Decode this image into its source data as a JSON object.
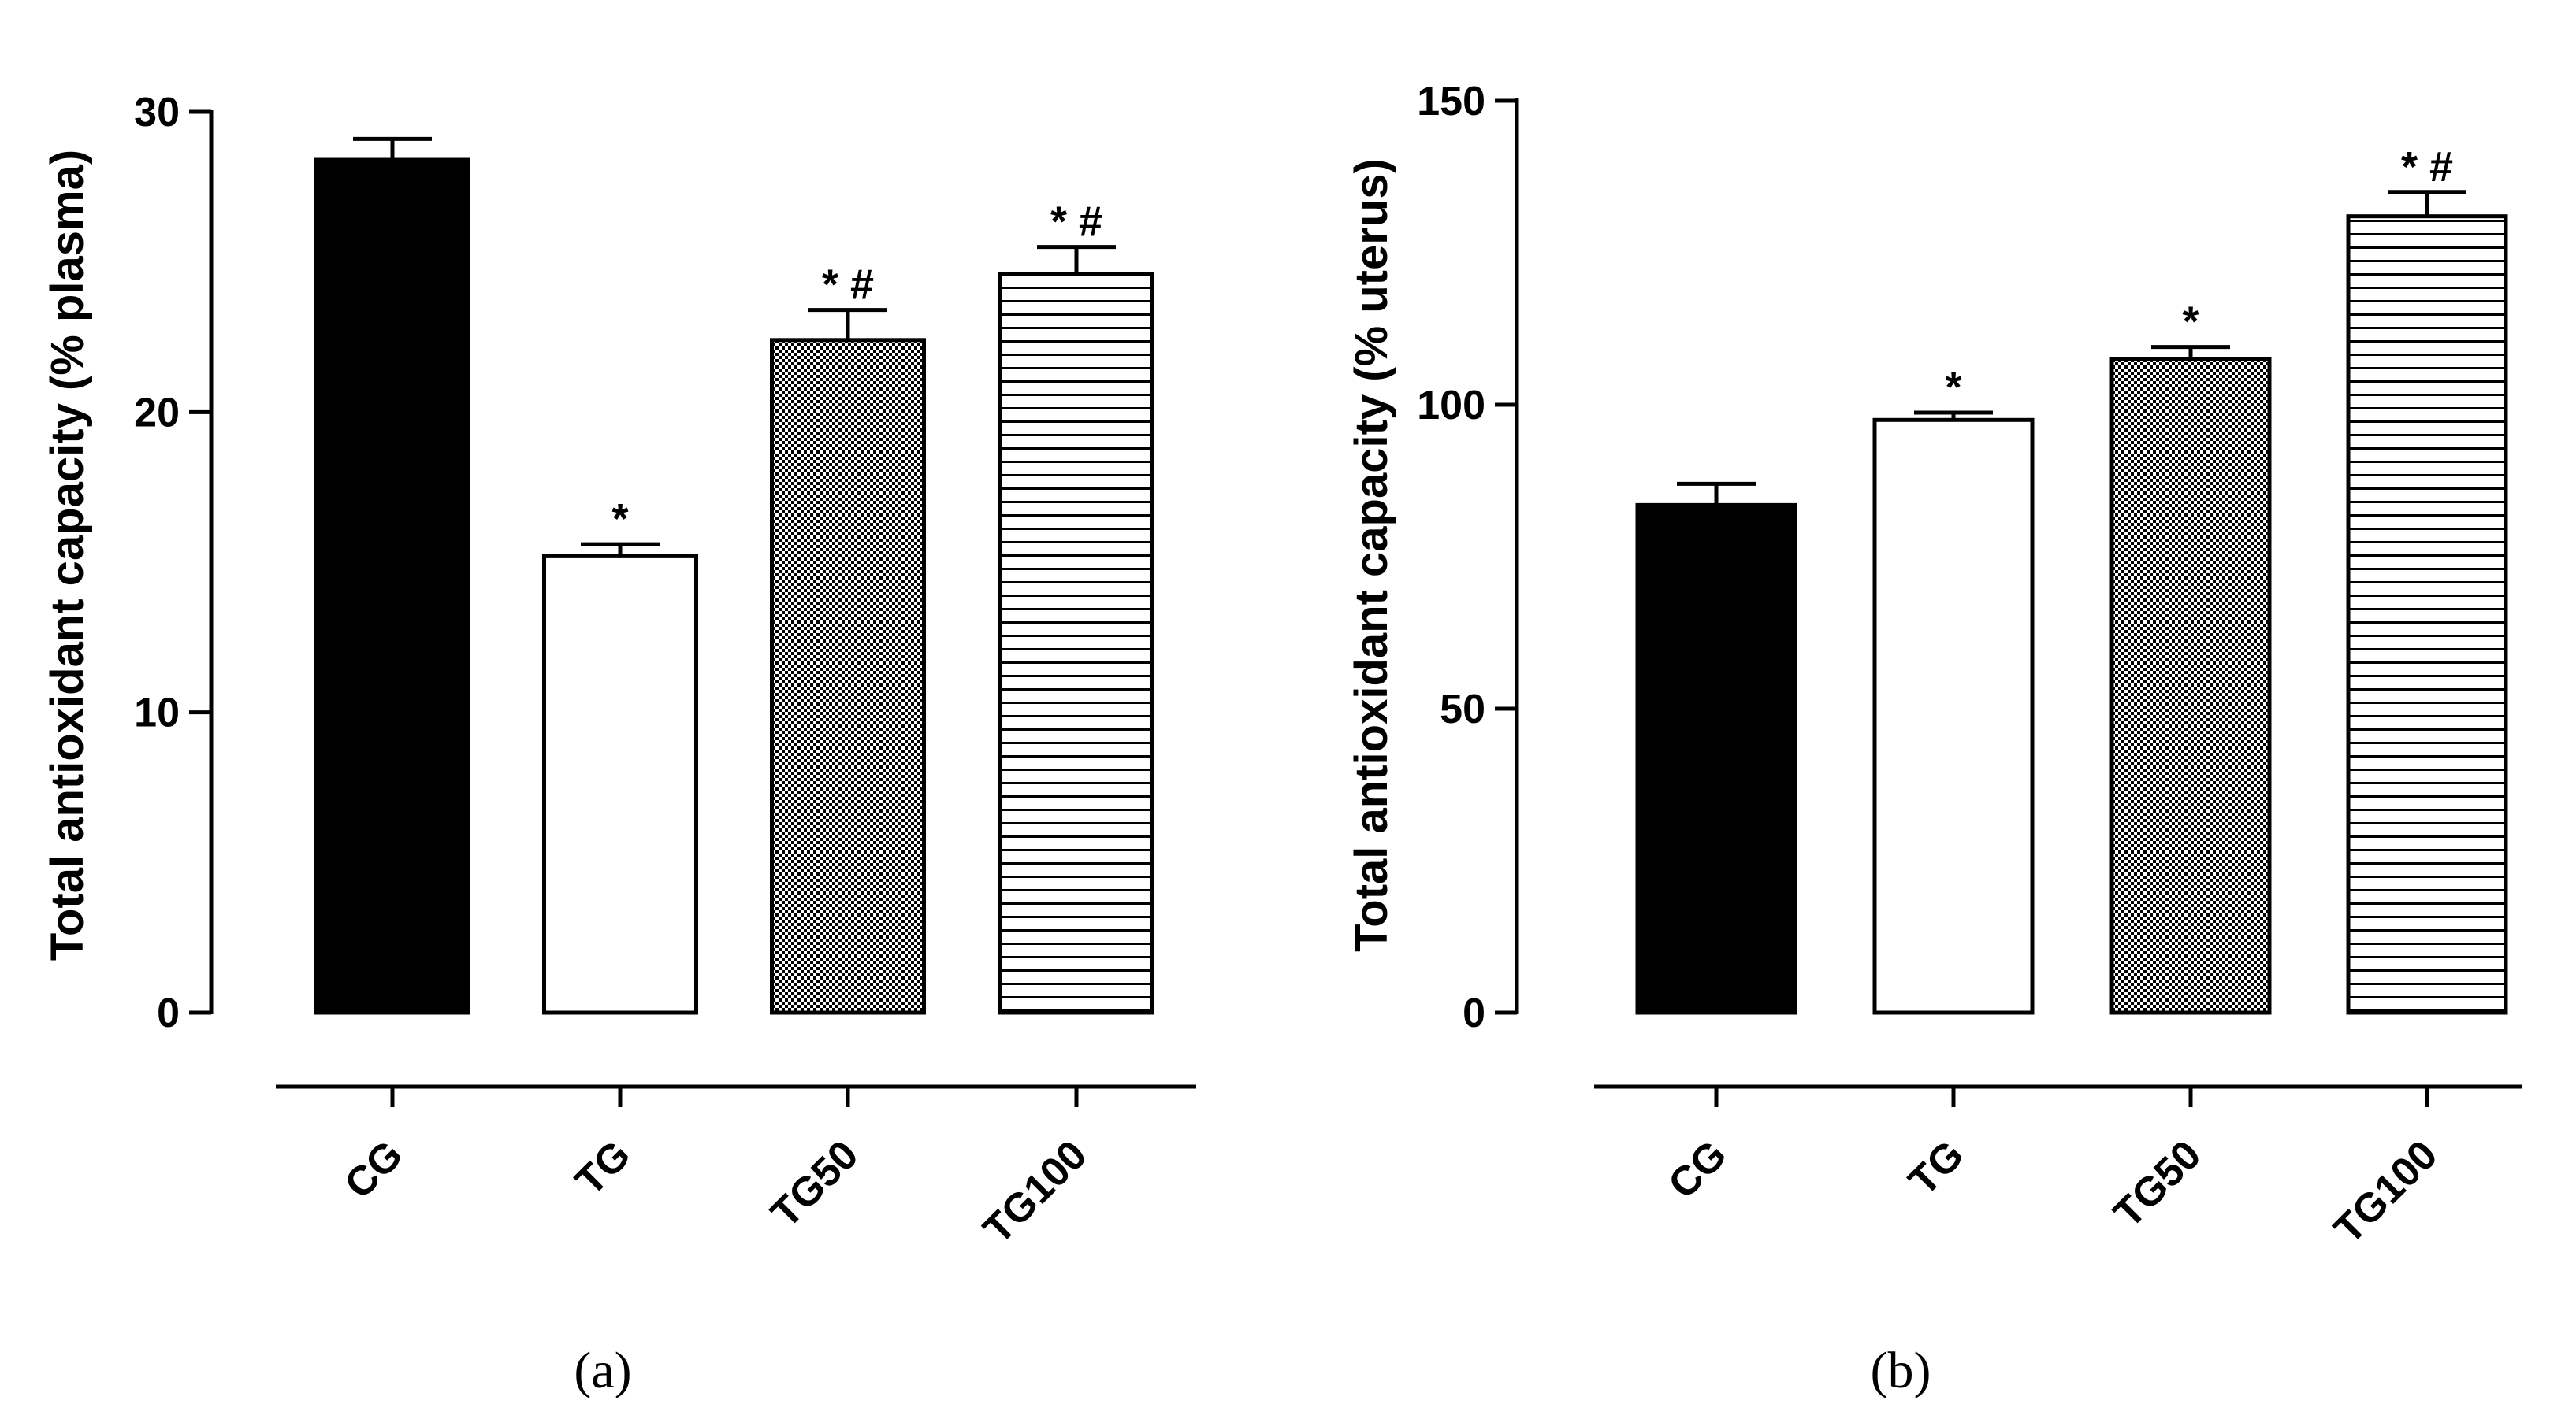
{
  "chart_data": [
    {
      "type": "bar",
      "panel_label": "(a)",
      "title": "",
      "xlabel": "",
      "ylabel": "Total antioxidant capacity (% plasma)",
      "ylim": [
        0,
        30
      ],
      "yticks": [
        0,
        10,
        20,
        30
      ],
      "ytick_labels": [
        "0",
        "10",
        "20",
        "30"
      ],
      "categories": [
        "CG",
        "TG",
        "TG50",
        "TG100"
      ],
      "values": [
        28.4,
        15.2,
        22.4,
        24.6
      ],
      "errors": [
        0.7,
        0.4,
        1.0,
        0.9
      ],
      "patterns": [
        "solid-black",
        "white",
        "checker",
        "hstripes"
      ],
      "annotations": [
        "",
        "*",
        "* #",
        "* #"
      ]
    },
    {
      "type": "bar",
      "panel_label": "(b)",
      "title": "",
      "xlabel": "",
      "ylabel": "Total antioxidant capacity (% uterus)",
      "ylim": [
        0,
        150
      ],
      "yticks": [
        0,
        50,
        100,
        150
      ],
      "ytick_labels": [
        "0",
        "50",
        "100",
        "150"
      ],
      "categories": [
        "CG",
        "TG",
        "TG50",
        "TG100"
      ],
      "values": [
        83.5,
        97.5,
        107.5,
        131
      ],
      "errors": [
        3.5,
        1.2,
        2.0,
        4.0
      ],
      "patterns": [
        "solid-black",
        "white",
        "checker",
        "hstripes"
      ],
      "annotations": [
        "",
        "*",
        "*",
        "* #"
      ]
    }
  ]
}
